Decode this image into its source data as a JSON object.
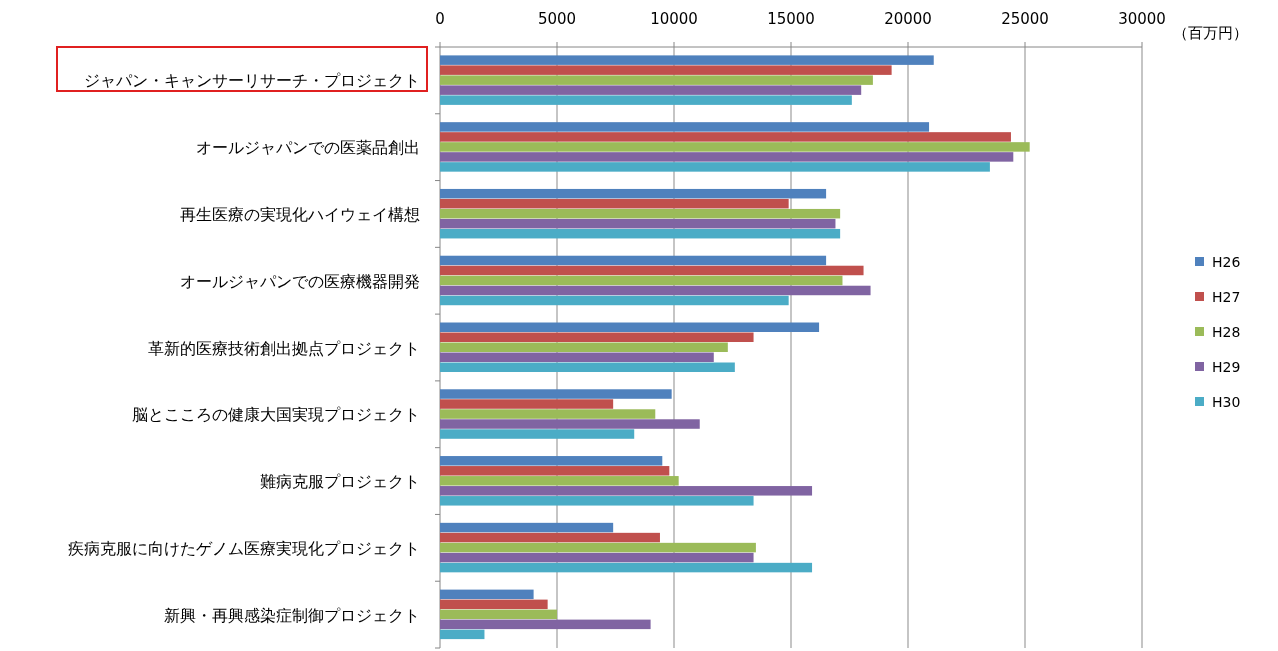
{
  "chart_data": {
    "type": "bar",
    "orientation": "horizontal",
    "xlabel": "（百万円）",
    "categories": [
      "ジャパン・キャンサーリサーチ・プロジェクト",
      "オールジャパンでの医薬品創出",
      "再生医療の実現化ハイウェイ構想",
      "オールジャパンでの医療機器開発",
      "革新的医療技術創出拠点プロジェクト",
      "脳とこころの健康大国実現プロジェクト",
      "難病克服プロジェクト",
      "疾病克服に向けたゲノム医療実現化プロジェクト",
      "新興・再興感染症制御プロジェクト"
    ],
    "series": [
      {
        "name": "H26",
        "color": "#4f81bd",
        "values": [
          21100,
          20900,
          16500,
          16500,
          16200,
          9900,
          9500,
          7400,
          4000
        ]
      },
      {
        "name": "H27",
        "color": "#c0504d",
        "values": [
          19300,
          24400,
          14900,
          18100,
          13400,
          7400,
          9800,
          9400,
          4600
        ]
      },
      {
        "name": "H28",
        "color": "#9bbb59",
        "values": [
          18500,
          25200,
          17100,
          17200,
          12300,
          9200,
          10200,
          13500,
          5000
        ]
      },
      {
        "name": "H29",
        "color": "#8064a2",
        "values": [
          18000,
          24500,
          16900,
          18400,
          11700,
          11100,
          15900,
          13400,
          9000
        ]
      },
      {
        "name": "H30",
        "color": "#4bacc6",
        "values": [
          17600,
          23500,
          17100,
          14900,
          12600,
          8300,
          13400,
          15900,
          1900
        ]
      }
    ],
    "xlim": [
      0,
      30000
    ],
    "xticks": [
      0,
      5000,
      10000,
      15000,
      20000,
      25000,
      30000
    ],
    "grid": "x",
    "legend": "right"
  }
}
